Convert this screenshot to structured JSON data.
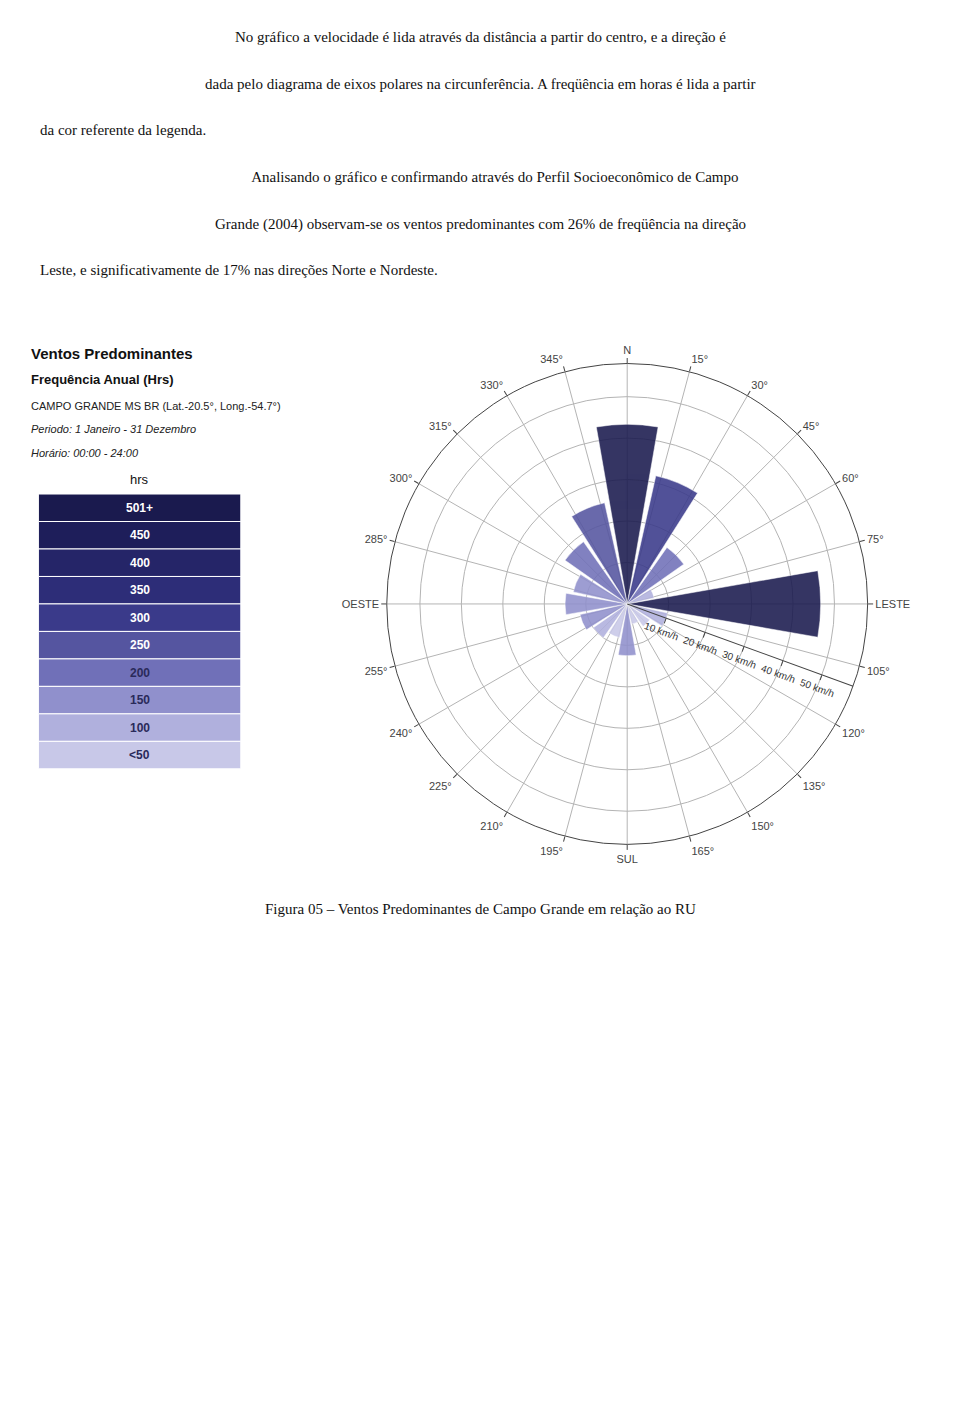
{
  "chart_data": {
    "type": "barpolar",
    "title": "Ventos Predominantes",
    "subtitle": "Frequência Anual (Hrs)",
    "annotations": [
      "CAMPO GRANDE MS BR (Lat.-20.5°, Long.-54.7°)",
      "Periodo: 1 Janeiro - 31 Dezembro",
      "Horário: 00:00 - 24:00"
    ],
    "paragraphs": [
      "No gráfico a velocidade é lida através da distância a partir do centro, e a direção é",
      "dada pelo diagrama de eixos polares na circunferência. A freqüência em horas é lida a partir",
      "da cor referente da legenda.",
      "        Analisando o gráfico e confirmando através do Perfil Socioeconômico de Campo",
      "Grande (2004) observam-se os ventos predominantes com 26% de freqüência na direção",
      "Leste, e significativamente de 17% nas direções Norte e Nordeste."
    ],
    "caption": "Figura 05 – Ventos Predominantes de Campo Grande em relação ao RU",
    "x": [
      0,
      22.5,
      45,
      67.5,
      90,
      112.5,
      135,
      157.5,
      180,
      202.5,
      225,
      247.5,
      270,
      292.5,
      315,
      337.5
    ],
    "values": [
      43.333333333333336,
      31.666666666666668,
      16.666666666666668,
      6.666666666666667,
      46.66666666666667,
      10,
      6.666666666666667,
      5,
      12.5,
      8.333333333333334,
      10,
      11.666666666666668,
      15,
      13.333333333333334,
      18.333333333333336,
      25
    ],
    "colors": [
      "#1a1a4e",
      "#3a3a8a",
      "#7070b8",
      "#b0b0dd",
      "#1a1a4e",
      "#b0b0dd",
      "#c8c8e8",
      "#c8c8e8",
      "#9090cc",
      "#c8c8e8",
      "#b0b0dd",
      "#9090cc",
      "#9090cc",
      "#9090cc",
      "#7070b8",
      "#5555a0"
    ],
    "xlim": [
      0,
      360
    ],
    "xticks": [
      {
        "value": 0,
        "label": "N"
      },
      {
        "value": 15,
        "label": "15°"
      },
      {
        "value": 30,
        "label": "30°"
      },
      {
        "value": 45,
        "label": "45°"
      },
      {
        "value": 60,
        "label": "60°"
      },
      {
        "value": 75,
        "label": "75°"
      },
      {
        "value": 90,
        "label": "LESTE"
      },
      {
        "value": 105,
        "label": "105°"
      },
      {
        "value": 120,
        "label": "120°"
      },
      {
        "value": 135,
        "label": "135°"
      },
      {
        "value": 150,
        "label": "150°"
      },
      {
        "value": 165,
        "label": "165°"
      },
      {
        "value": 180,
        "label": "SUL"
      },
      {
        "value": 195,
        "label": "195°"
      },
      {
        "value": 210,
        "label": "210°"
      },
      {
        "value": 225,
        "label": "225°"
      },
      {
        "value": 240,
        "label": "240°"
      },
      {
        "value": 255,
        "label": "255°"
      },
      {
        "value": 270,
        "label": "OESTE"
      },
      {
        "value": 285,
        "label": "285°"
      },
      {
        "value": 300,
        "label": "300°"
      },
      {
        "value": 315,
        "label": "315°"
      },
      {
        "value": 330,
        "label": "330°"
      },
      {
        "value": 345,
        "label": "345°"
      }
    ],
    "ylim": [
      0,
      58
    ],
    "yticks": [
      {
        "value": 10,
        "label": "10 km/h"
      },
      {
        "value": 20,
        "label": "20 km/h"
      },
      {
        "value": 30,
        "label": "30 km/h"
      },
      {
        "value": 40,
        "label": "40 km/h"
      },
      {
        "value": 50,
        "label": "50 km/h"
      }
    ],
    "grid": true,
    "color_legend": {
      "title": "hrs",
      "labels": [
        "501+",
        "450",
        "400",
        "350",
        "300",
        "250",
        "200",
        "150",
        "100",
        "<50"
      ],
      "colors": [
        "#1a1a4e",
        "#1e1e5a",
        "#252568",
        "#2d2d78",
        "#3a3a8a",
        "#5555a0",
        "#7070b8",
        "#9090cc",
        "#b0b0dd",
        "#c8c8e8"
      ]
    }
  }
}
